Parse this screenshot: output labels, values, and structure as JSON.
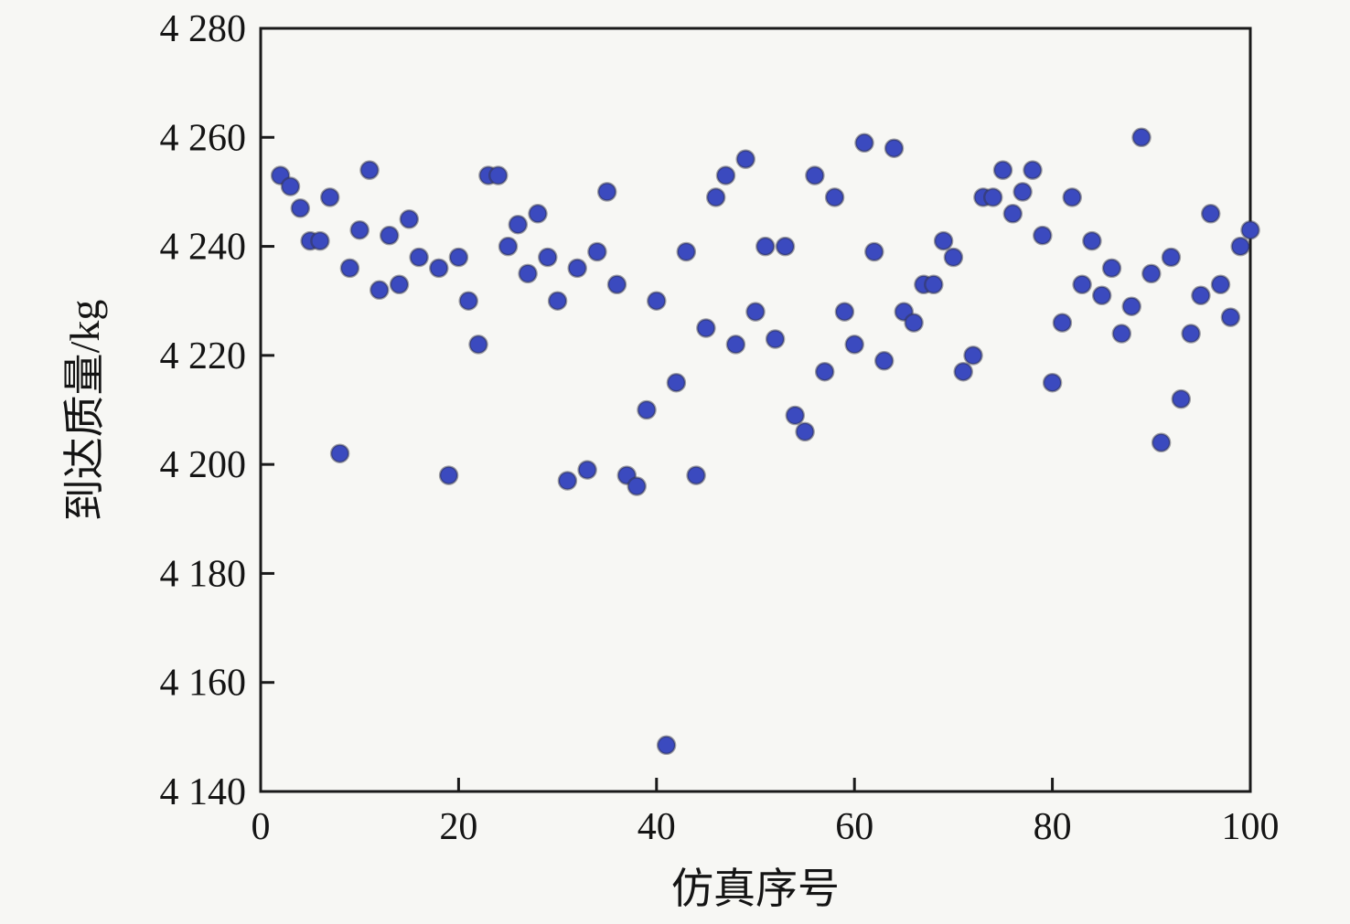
{
  "figure": {
    "background": "#f7f7f4",
    "axis_color": "#1a1a1a",
    "marker_color": "#3b4abf",
    "marker_edge_color": "#30303f"
  },
  "chart_data": {
    "type": "scatter",
    "title": "",
    "xlabel": "仿真序号",
    "ylabel": "到达质量/kg",
    "xlim": [
      0,
      100
    ],
    "ylim": [
      4140,
      4280
    ],
    "grid": false,
    "legend_position": "none",
    "x_ticks": {
      "values": [
        0,
        20,
        40,
        60,
        80,
        100
      ],
      "labels": [
        "0",
        "20",
        "40",
        "60",
        "80",
        "100"
      ]
    },
    "y_ticks": {
      "values": [
        4140,
        4160,
        4180,
        4200,
        4220,
        4240,
        4260,
        4280
      ],
      "labels": [
        "4 140",
        "4 160",
        "4 180",
        "4 200",
        "4 220",
        "4 240",
        "4 260",
        "4 280"
      ]
    },
    "series": [
      {
        "name": "到达质量",
        "marker": "circle",
        "color": "#3b4abf",
        "points": [
          [
            2,
            4253
          ],
          [
            3,
            4251
          ],
          [
            4,
            4247
          ],
          [
            5,
            4241
          ],
          [
            6,
            4241
          ],
          [
            7,
            4249
          ],
          [
            8,
            4202
          ],
          [
            9,
            4236
          ],
          [
            10,
            4243
          ],
          [
            11,
            4254
          ],
          [
            12,
            4232
          ],
          [
            13,
            4242
          ],
          [
            14,
            4233
          ],
          [
            15,
            4245
          ],
          [
            16,
            4238
          ],
          [
            18,
            4236
          ],
          [
            19,
            4198
          ],
          [
            20,
            4238
          ],
          [
            21,
            4230
          ],
          [
            22,
            4222
          ],
          [
            23,
            4253
          ],
          [
            24,
            4253
          ],
          [
            25,
            4240
          ],
          [
            26,
            4244
          ],
          [
            27,
            4235
          ],
          [
            28,
            4246
          ],
          [
            29,
            4238
          ],
          [
            30,
            4230
          ],
          [
            31,
            4197
          ],
          [
            32,
            4236
          ],
          [
            33,
            4199
          ],
          [
            34,
            4239
          ],
          [
            35,
            4250
          ],
          [
            36,
            4233
          ],
          [
            37,
            4198
          ],
          [
            38,
            4196
          ],
          [
            39,
            4210
          ],
          [
            40,
            4230
          ],
          [
            41,
            4148.5
          ],
          [
            42,
            4215
          ],
          [
            43,
            4239
          ],
          [
            44,
            4198
          ],
          [
            45,
            4225
          ],
          [
            46,
            4249
          ],
          [
            47,
            4253
          ],
          [
            48,
            4222
          ],
          [
            49,
            4256
          ],
          [
            50,
            4228
          ],
          [
            51,
            4240
          ],
          [
            52,
            4223
          ],
          [
            53,
            4240
          ],
          [
            54,
            4209
          ],
          [
            55,
            4206
          ],
          [
            56,
            4253
          ],
          [
            57,
            4217
          ],
          [
            58,
            4249
          ],
          [
            59,
            4228
          ],
          [
            60,
            4222
          ],
          [
            61,
            4259
          ],
          [
            62,
            4239
          ],
          [
            63,
            4219
          ],
          [
            64,
            4258
          ],
          [
            65,
            4228
          ],
          [
            66,
            4226
          ],
          [
            67,
            4233
          ],
          [
            68,
            4233
          ],
          [
            69,
            4241
          ],
          [
            70,
            4238
          ],
          [
            71,
            4217
          ],
          [
            72,
            4220
          ],
          [
            73,
            4249
          ],
          [
            74,
            4249
          ],
          [
            75,
            4254
          ],
          [
            76,
            4246
          ],
          [
            77,
            4250
          ],
          [
            78,
            4254
          ],
          [
            79,
            4242
          ],
          [
            80,
            4215
          ],
          [
            81,
            4226
          ],
          [
            82,
            4249
          ],
          [
            83,
            4233
          ],
          [
            84,
            4241
          ],
          [
            85,
            4231
          ],
          [
            86,
            4236
          ],
          [
            87,
            4224
          ],
          [
            88,
            4229
          ],
          [
            89,
            4260
          ],
          [
            90,
            4235
          ],
          [
            91,
            4204
          ],
          [
            92,
            4238
          ],
          [
            93,
            4212
          ],
          [
            94,
            4224
          ],
          [
            95,
            4231
          ],
          [
            96,
            4246
          ],
          [
            97,
            4233
          ],
          [
            98,
            4227
          ],
          [
            99,
            4240
          ],
          [
            100,
            4243
          ]
        ]
      }
    ]
  }
}
